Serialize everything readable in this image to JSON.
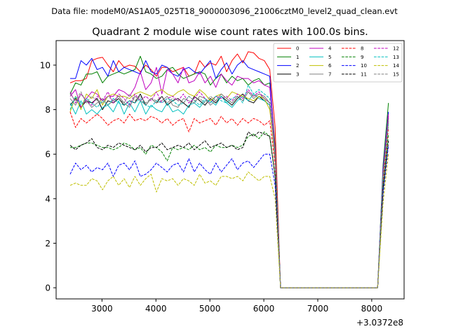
{
  "chart_data": {
    "type": "line",
    "suptitle": "Data file: modeM0/AS1A05_025T18_9000003096_21006cztM0_level2_quad_clean.evt",
    "title": "Quadrant 2 module wise count rates with 100.0s bins.",
    "xlabel": "",
    "ylabel": "",
    "x_offset_label": "+3.0372e8",
    "xlim": [
      2150,
      8600
    ],
    "ylim": [
      -0.5,
      11.1
    ],
    "xticks": [
      3000,
      4000,
      5000,
      6000,
      7000,
      8000
    ],
    "yticks": [
      0,
      2,
      4,
      6,
      8,
      10
    ],
    "legend_position": "top-right",
    "x": [
      2410,
      2510,
      2610,
      2710,
      2810,
      2910,
      3010,
      3110,
      3210,
      3310,
      3410,
      3510,
      3610,
      3710,
      3810,
      3910,
      4010,
      4110,
      4210,
      4310,
      4410,
      4510,
      4610,
      4710,
      4810,
      4910,
      5010,
      5110,
      5210,
      5310,
      5410,
      5510,
      5610,
      5710,
      5810,
      5910,
      6010,
      6110,
      6210,
      6310,
      8110,
      8210,
      8310
    ],
    "series": [
      {
        "name": "0",
        "color": "#ff0000",
        "dash": false,
        "values": [
          9.2,
          9.3,
          9.3,
          9.4,
          10.2,
          10.3,
          10.35,
          10.0,
          9.7,
          10.2,
          9.9,
          10.0,
          9.95,
          9.7,
          10.0,
          9.8,
          9.5,
          9.9,
          9.9,
          9.7,
          9.8,
          9.9,
          9.5,
          9.6,
          10.2,
          9.9,
          10.1,
          10.0,
          10.4,
          9.7,
          10.2,
          10.5,
          10.1,
          10.6,
          10.55,
          10.3,
          10.2,
          9.8,
          7.2,
          0.0,
          0.0,
          5.0,
          7.7
        ]
      },
      {
        "name": "1",
        "color": "#008000",
        "dash": false,
        "values": [
          8.7,
          9.2,
          9.1,
          9.6,
          9.6,
          9.7,
          9.2,
          9.5,
          9.6,
          9.7,
          9.6,
          9.7,
          9.8,
          10.4,
          9.7,
          9.6,
          9.4,
          9.5,
          9.8,
          9.9,
          9.6,
          9.4,
          9.5,
          9.6,
          9.7,
          9.6,
          9.1,
          9.4,
          9.6,
          9.2,
          9.5,
          9.3,
          9.4,
          9.1,
          9.3,
          9.4,
          9.1,
          9.2,
          6.4,
          0.0,
          0.0,
          5.5,
          8.3
        ]
      },
      {
        "name": "2",
        "color": "#0000ff",
        "dash": false,
        "values": [
          9.4,
          9.4,
          10.2,
          10.0,
          10.3,
          9.8,
          9.9,
          9.5,
          10.2,
          9.7,
          9.9,
          9.8,
          9.7,
          9.6,
          10.2,
          9.7,
          9.6,
          10.0,
          9.9,
          9.6,
          9.5,
          9.8,
          9.9,
          9.7,
          9.6,
          9.9,
          10.2,
          9.4,
          9.8,
          10.1,
          9.6,
          10.0,
          10.2,
          9.9,
          9.8,
          9.7,
          9.6,
          9.5,
          6.0,
          0.0,
          0.0,
          5.3,
          7.9
        ]
      },
      {
        "name": "3",
        "color": "#000000",
        "dash": false,
        "values": [
          8.2,
          8.5,
          8.1,
          8.4,
          8.3,
          8.5,
          8.0,
          8.4,
          8.3,
          8.5,
          8.2,
          8.4,
          8.3,
          8.7,
          8.2,
          8.5,
          8.3,
          8.6,
          8.2,
          8.4,
          8.5,
          8.3,
          8.1,
          8.6,
          8.4,
          8.2,
          8.5,
          8.3,
          8.6,
          8.4,
          8.2,
          8.5,
          8.7,
          8.4,
          8.3,
          8.6,
          8.4,
          8.2,
          5.8,
          0.0,
          0.0,
          5.1,
          7.6
        ]
      },
      {
        "name": "4",
        "color": "#bf00bf",
        "dash": false,
        "values": [
          8.6,
          8.9,
          8.1,
          8.5,
          8.8,
          8.7,
          8.4,
          8.6,
          8.6,
          8.9,
          8.8,
          8.6,
          9.0,
          9.7,
          8.9,
          9.2,
          9.9,
          8.7,
          9.8,
          9.6,
          9.2,
          9.9,
          9.2,
          9.3,
          9.7,
          9.2,
          9.5,
          9.0,
          9.6,
          9.3,
          9.1,
          9.5,
          9.4,
          9.4,
          9.2,
          9.3,
          9.1,
          9.0,
          6.2,
          0.0,
          0.0,
          5.2,
          7.8
        ]
      },
      {
        "name": "5",
        "color": "#00bfbf",
        "dash": false,
        "values": [
          8.3,
          7.8,
          8.4,
          7.8,
          8.0,
          7.8,
          8.1,
          8.2,
          7.9,
          8.4,
          7.8,
          8.3,
          7.9,
          8.4,
          7.8,
          8.2,
          8.0,
          7.9,
          8.3,
          7.9,
          8.0,
          7.8,
          8.2,
          8.3,
          8.1,
          8.4,
          8.4,
          8.2,
          8.6,
          8.3,
          8.1,
          8.4,
          8.6,
          8.4,
          8.7,
          8.5,
          8.4,
          8.2,
          5.9,
          0.0,
          0.0,
          5.0,
          7.5
        ]
      },
      {
        "name": "6",
        "color": "#bfbf00",
        "dash": false,
        "values": [
          7.9,
          8.6,
          8.0,
          8.7,
          8.5,
          8.9,
          8.2,
          8.6,
          8.7,
          8.6,
          8.6,
          8.5,
          8.7,
          8.8,
          8.7,
          8.6,
          8.8,
          8.9,
          8.7,
          8.6,
          8.8,
          8.9,
          8.7,
          8.6,
          8.9,
          8.7,
          8.4,
          8.6,
          8.7,
          8.5,
          8.8,
          8.7,
          8.6,
          8.5,
          8.4,
          8.6,
          8.5,
          8.0,
          5.9,
          0.0,
          0.0,
          5.0,
          7.4
        ]
      },
      {
        "name": "7",
        "color": "#808080",
        "dash": false,
        "values": [
          8.5,
          8.2,
          8.7,
          8.4,
          8.1,
          8.3,
          8.5,
          8.2,
          8.4,
          8.6,
          8.3,
          8.1,
          8.6,
          8.4,
          8.2,
          8.5,
          8.3,
          8.4,
          8.6,
          8.2,
          8.1,
          8.5,
          8.4,
          8.3,
          8.6,
          8.5,
          8.2,
          8.4,
          8.7,
          8.5,
          8.3,
          8.6,
          8.4,
          8.8,
          8.5,
          8.7,
          8.6,
          8.3,
          6.0,
          0.0,
          0.0,
          5.0,
          7.5
        ]
      },
      {
        "name": "8",
        "color": "#ff0000",
        "dash": true,
        "values": [
          7.9,
          7.2,
          7.6,
          7.4,
          7.6,
          7.8,
          7.6,
          7.3,
          7.5,
          7.6,
          7.4,
          7.8,
          7.5,
          7.6,
          7.5,
          7.7,
          7.6,
          7.4,
          7.6,
          7.3,
          7.5,
          7.6,
          7.0,
          7.6,
          7.4,
          7.5,
          7.6,
          7.3,
          7.7,
          7.4,
          7.6,
          7.3,
          7.6,
          7.4,
          7.6,
          7.5,
          7.3,
          7.5,
          5.5,
          0.0,
          0.0,
          4.8,
          7.2
        ]
      },
      {
        "name": "9",
        "color": "#008000",
        "dash": true,
        "values": [
          6.3,
          6.3,
          6.4,
          6.5,
          6.5,
          6.4,
          6.3,
          6.3,
          6.2,
          6.3,
          6.5,
          6.4,
          6.2,
          6.3,
          6.0,
          6.4,
          6.3,
          6.1,
          5.7,
          6.3,
          6.2,
          6.3,
          6.2,
          6.4,
          6.2,
          6.3,
          6.1,
          6.4,
          6.3,
          6.3,
          6.4,
          6.3,
          6.4,
          6.8,
          6.9,
          6.7,
          7.0,
          6.8,
          5.0,
          0.0,
          0.0,
          4.5,
          6.9
        ]
      },
      {
        "name": "10",
        "color": "#0000ff",
        "dash": true,
        "values": [
          5.1,
          5.6,
          5.3,
          5.5,
          5.2,
          5.4,
          5.3,
          5.6,
          5.0,
          5.5,
          5.6,
          5.3,
          5.7,
          5.0,
          5.1,
          5.3,
          5.6,
          5.4,
          5.2,
          5.5,
          5.6,
          5.2,
          5.8,
          5.2,
          5.6,
          5.3,
          5.1,
          5.6,
          5.2,
          5.5,
          5.8,
          5.3,
          5.6,
          5.7,
          5.4,
          5.7,
          6.0,
          6.0,
          4.6,
          0.0,
          0.0,
          4.2,
          6.4
        ]
      },
      {
        "name": "11",
        "color": "#000000",
        "dash": true,
        "values": [
          6.4,
          6.2,
          6.4,
          6.5,
          6.7,
          6.3,
          6.2,
          6.4,
          6.3,
          6.5,
          6.4,
          6.3,
          6.2,
          6.4,
          6.1,
          6.3,
          6.3,
          6.5,
          6.2,
          6.3,
          6.4,
          6.3,
          6.5,
          6.2,
          6.4,
          6.6,
          6.3,
          6.4,
          6.5,
          6.3,
          6.4,
          6.2,
          6.3,
          7.0,
          6.8,
          7.0,
          6.9,
          6.8,
          5.0,
          0.0,
          0.0,
          4.4,
          6.6
        ]
      },
      {
        "name": "12",
        "color": "#bf00bf",
        "dash": true,
        "values": [
          8.8,
          8.3,
          8.7,
          8.4,
          8.2,
          8.6,
          8.4,
          8.8,
          8.3,
          8.7,
          8.5,
          8.2,
          8.7,
          8.4,
          8.6,
          8.4,
          8.8,
          8.3,
          8.5,
          8.6,
          8.4,
          8.7,
          8.3,
          8.5,
          8.8,
          8.5,
          8.3,
          8.6,
          8.5,
          8.6,
          8.4,
          8.7,
          8.5,
          8.9,
          8.6,
          8.8,
          8.5,
          8.3,
          6.0,
          0.0,
          0.0,
          5.0,
          7.7
        ]
      },
      {
        "name": "13",
        "color": "#00bfbf",
        "dash": true,
        "values": [
          8.0,
          8.6,
          8.2,
          8.5,
          8.3,
          8.1,
          8.4,
          8.2,
          8.5,
          8.3,
          8.2,
          8.4,
          8.3,
          8.5,
          8.2,
          8.1,
          8.4,
          8.3,
          8.5,
          8.4,
          8.2,
          8.3,
          8.6,
          8.4,
          8.2,
          8.5,
          8.3,
          8.6,
          8.4,
          8.3,
          8.5,
          8.6,
          8.3,
          9.1,
          8.7,
          8.9,
          8.7,
          8.5,
          6.0,
          0.0,
          0.0,
          5.0,
          7.4
        ]
      },
      {
        "name": "14",
        "color": "#bfbf00",
        "dash": true,
        "values": [
          4.6,
          4.7,
          4.6,
          4.6,
          4.9,
          4.8,
          4.4,
          4.8,
          5.0,
          4.6,
          4.9,
          4.5,
          5.0,
          4.6,
          4.9,
          5.1,
          4.3,
          4.9,
          4.8,
          4.9,
          4.6,
          4.9,
          4.8,
          4.6,
          5.1,
          4.7,
          4.8,
          4.6,
          5.0,
          5.0,
          4.9,
          5.0,
          4.8,
          5.2,
          5.0,
          4.8,
          5.0,
          5.0,
          4.0,
          0.0,
          0.0,
          3.8,
          6.0
        ]
      },
      {
        "name": "15",
        "color": "#808080",
        "dash": true,
        "values": [
          8.7,
          8.4,
          8.8,
          8.3,
          8.6,
          8.4,
          8.3,
          8.6,
          8.4,
          8.5,
          8.3,
          8.7,
          8.4,
          8.6,
          8.3,
          8.5,
          8.4,
          8.6,
          8.3,
          8.5,
          8.4,
          8.3,
          8.6,
          8.4,
          8.5,
          8.3,
          8.6,
          8.4,
          8.7,
          8.5,
          8.3,
          8.6,
          8.4,
          8.8,
          8.6,
          8.7,
          8.5,
          8.3,
          6.0,
          0.0,
          0.0,
          5.0,
          7.6
        ]
      }
    ]
  }
}
